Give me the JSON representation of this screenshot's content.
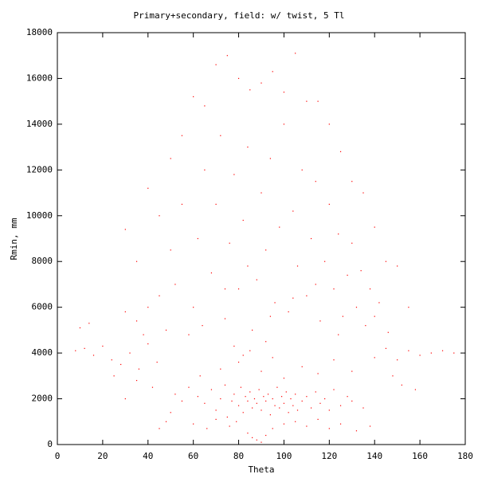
{
  "chart_data": {
    "type": "scatter",
    "title": "Primary+secondary, field: w/ twist, 5 Tl",
    "x_label": "Theta",
    "y_label": "Rmin, mm",
    "color": "#ff0000",
    "xlim": [
      0,
      180
    ],
    "ylim": [
      0,
      18000
    ],
    "xticks": [
      0,
      20,
      40,
      60,
      80,
      100,
      120,
      140,
      160,
      180
    ],
    "yticks": [
      0,
      2000,
      4000,
      6000,
      8000,
      10000,
      12000,
      14000,
      16000,
      18000
    ],
    "x": [
      62,
      65,
      68,
      70,
      72,
      74,
      75,
      77,
      78,
      80,
      81,
      82,
      83,
      84,
      85,
      86,
      87,
      88,
      89,
      90,
      91,
      92,
      93,
      94,
      95,
      96,
      97,
      98,
      99,
      100,
      101,
      102,
      103,
      104,
      105,
      106,
      108,
      110,
      112,
      114,
      116,
      118,
      120,
      122,
      125,
      128,
      55,
      58,
      50,
      52,
      130,
      135,
      48,
      60,
      66,
      70,
      76,
      79,
      84,
      86,
      88,
      90,
      92,
      95,
      100,
      105,
      110,
      115,
      120,
      125,
      132,
      138,
      45,
      63,
      72,
      80,
      85,
      90,
      95,
      100,
      108,
      115,
      122,
      130,
      78,
      82,
      92,
      8,
      12,
      16,
      20,
      24,
      28,
      32,
      36,
      40,
      44,
      140,
      145,
      150,
      155,
      160,
      165,
      170,
      175,
      25,
      35,
      42,
      148,
      152,
      30,
      158,
      10,
      14,
      38,
      146,
      30,
      35,
      40,
      45,
      50,
      55,
      60,
      65,
      70,
      75,
      80,
      85,
      90,
      95,
      100,
      105,
      110,
      115,
      120,
      125,
      130,
      135,
      140,
      145,
      150,
      155,
      45,
      50,
      55,
      60,
      62,
      65,
      68,
      70,
      72,
      74,
      76,
      78,
      80,
      82,
      84,
      86,
      88,
      90,
      92,
      94,
      96,
      98,
      100,
      102,
      104,
      106,
      108,
      110,
      112,
      114,
      116,
      118,
      120,
      122,
      124,
      126,
      128,
      130,
      132,
      134,
      136,
      138,
      140,
      142,
      40,
      35,
      30,
      48,
      52,
      58,
      64,
      74,
      84,
      94,
      104,
      114,
      124
    ],
    "y": [
      2100,
      1800,
      2400,
      1500,
      2000,
      2600,
      1200,
      1900,
      2200,
      1700,
      2500,
      1400,
      2100,
      1900,
      2300,
      1600,
      2000,
      1800,
      2400,
      1500,
      2100,
      1900,
      2200,
      1300,
      2000,
      1700,
      2500,
      1600,
      2100,
      1800,
      2300,
      1400,
      2000,
      1700,
      2200,
      1500,
      1900,
      2100,
      1600,
      2300,
      1800,
      2000,
      1500,
      2400,
      1700,
      2100,
      1900,
      2500,
      1400,
      2200,
      1900,
      1600,
      1000,
      900,
      700,
      1100,
      800,
      1000,
      500,
      300,
      200,
      100,
      400,
      700,
      900,
      1000,
      800,
      1100,
      700,
      900,
      600,
      800,
      700,
      3000,
      3300,
      3600,
      4100,
      3200,
      3800,
      2900,
      3400,
      3100,
      3700,
      3200,
      4300,
      3900,
      4500,
      4100,
      4200,
      3900,
      4300,
      3700,
      3500,
      4000,
      3300,
      4400,
      3600,
      3800,
      4200,
      3700,
      4100,
      3900,
      4000,
      4100,
      4000,
      3000,
      2800,
      2500,
      3000,
      2600,
      2000,
      2400,
      5100,
      5300,
      4800,
      4900,
      9400,
      8000,
      11200,
      10000,
      12500,
      13500,
      15200,
      14800,
      16600,
      17000,
      16000,
      15500,
      15800,
      16300,
      15400,
      17100,
      15000,
      15000,
      14000,
      12800,
      11500,
      11000,
      9500,
      8000,
      7800,
      6000,
      6500,
      8500,
      10500,
      6000,
      9000,
      12000,
      7500,
      10500,
      13500,
      5500,
      8800,
      11800,
      6800,
      9800,
      13000,
      5000,
      7200,
      11000,
      8500,
      12500,
      6200,
      9500,
      14000,
      5800,
      10200,
      7800,
      12000,
      6500,
      9000,
      11500,
      5400,
      8000,
      10500,
      6800,
      9200,
      5600,
      7400,
      8800,
      6000,
      7600,
      5200,
      6800,
      5600,
      6200,
      6000,
      5400,
      5800,
      5000,
      7000,
      4800,
      5200,
      6800,
      7800,
      5600,
      6400,
      7000,
      4800
    ]
  }
}
